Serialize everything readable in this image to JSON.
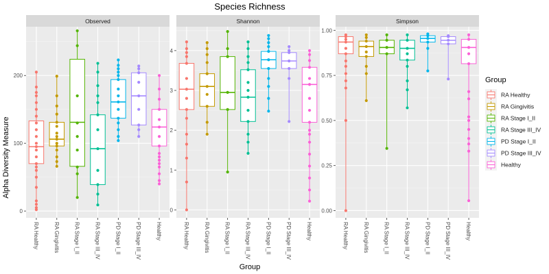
{
  "chart_data": {
    "type": "box",
    "title": "Species Richness",
    "xlabel": "Group",
    "ylabel": "Alpha Diversity Measure",
    "legend": {
      "title": "Group",
      "position": "right"
    },
    "groups": [
      {
        "name": "RA Healthy",
        "color": "#F8766D"
      },
      {
        "name": "RA Gingivitis",
        "color": "#C49A00"
      },
      {
        "name": "RA Stage I_II",
        "color": "#53B400"
      },
      {
        "name": "RA Stage III_IV",
        "color": "#00C094"
      },
      {
        "name": "PD Stage I_II",
        "color": "#00B6EB"
      },
      {
        "name": "PD Stage III_IV",
        "color": "#A58AFF"
      },
      {
        "name": "Healthy",
        "color": "#FB61D7"
      }
    ],
    "panels": [
      {
        "name": "Observed",
        "ylim": [
          -10,
          272
        ],
        "yticks": [
          0,
          100,
          200
        ],
        "boxes": [
          {
            "q1": 70,
            "median": 95,
            "q3": 133,
            "lo": 2,
            "hi": 205,
            "points": [
              2,
              5,
              10,
              15,
              35,
              50,
              60,
              65,
              70,
              80,
              90,
              95,
              100,
              110,
              120,
              130,
              140,
              150,
              160,
              170,
              175,
              183,
              205
            ]
          },
          {
            "q1": 96,
            "median": 106,
            "q3": 131,
            "lo": 66,
            "hi": 199,
            "points": [
              66,
              73,
              80,
              90,
              96,
              100,
              106,
              110,
              115,
              125,
              131,
              143,
              155,
              170,
              199
            ]
          },
          {
            "q1": 66,
            "median": 131,
            "q3": 224,
            "lo": 20,
            "hi": 266,
            "points": [
              20,
              55,
              65,
              90,
              110,
              130,
              170,
              244,
              266
            ]
          },
          {
            "q1": 39,
            "median": 92,
            "q3": 142,
            "lo": 9,
            "hi": 218,
            "points": [
              9,
              25,
              39,
              60,
              92,
              120,
              142,
              160,
              170,
              185,
              205,
              218
            ]
          },
          {
            "q1": 137,
            "median": 161,
            "q3": 194,
            "lo": 104,
            "hi": 223,
            "points": [
              104,
              110,
              120,
              130,
              137,
              150,
              161,
              170,
              180,
              194,
              200,
              205,
              210,
              215,
              223
            ]
          },
          {
            "q1": 127,
            "median": 170,
            "q3": 204,
            "lo": 110,
            "hi": 214,
            "points": [
              110,
              120,
              127,
              150,
              170,
              190,
              204,
              210,
              214
            ]
          },
          {
            "q1": 96,
            "median": 124,
            "q3": 150,
            "lo": 40,
            "hi": 200,
            "points": [
              40,
              45,
              55,
              65,
              70,
              75,
              80,
              85,
              96,
              110,
              124,
              135,
              150,
              165,
              180,
              200
            ]
          }
        ]
      },
      {
        "name": "Shannon",
        "ylim": [
          -0.2,
          4.6
        ],
        "yticks": [
          0,
          1,
          2,
          3,
          4
        ],
        "boxes": [
          {
            "q1": 2.52,
            "median": 3.03,
            "q3": 3.68,
            "lo": 0.0,
            "hi": 4.22,
            "points": [
              0.0,
              0.7,
              1.3,
              1.65,
              1.9,
              2.3,
              2.52,
              2.8,
              3.03,
              3.3,
              3.68,
              3.85,
              3.95,
              4.05,
              4.22
            ]
          },
          {
            "q1": 2.6,
            "median": 3.1,
            "q3": 3.42,
            "lo": 1.9,
            "hi": 4.2,
            "points": [
              1.9,
              2.2,
              2.6,
              2.9,
              3.1,
              3.42,
              3.7,
              3.9,
              4.05,
              4.2
            ]
          },
          {
            "q1": 2.52,
            "median": 2.95,
            "q3": 3.85,
            "lo": 0.95,
            "hi": 4.48,
            "points": [
              0.95,
              2.52,
              2.95,
              3.85,
              4.05,
              4.48
            ]
          },
          {
            "q1": 2.22,
            "median": 2.83,
            "q3": 3.52,
            "lo": 1.42,
            "hi": 4.22,
            "points": [
              1.42,
              1.7,
              1.9,
              2.22,
              2.5,
              2.83,
              3.0,
              3.2,
              3.52,
              3.7,
              3.85,
              4.05,
              4.22
            ]
          },
          {
            "q1": 3.55,
            "median": 3.77,
            "q3": 3.98,
            "lo": 2.48,
            "hi": 4.38,
            "points": [
              2.48,
              2.8,
              3.1,
              3.3,
              3.55,
              3.77,
              3.98,
              4.1,
              4.2,
              4.3,
              4.38
            ]
          },
          {
            "q1": 3.55,
            "median": 3.74,
            "q3": 3.95,
            "lo": 2.22,
            "hi": 4.1,
            "points": [
              2.22,
              3.3,
              3.55,
              3.74,
              3.95,
              4.0,
              4.1
            ]
          },
          {
            "q1": 2.2,
            "median": 3.15,
            "q3": 3.58,
            "lo": 0.22,
            "hi": 4.0,
            "points": [
              0.22,
              0.5,
              0.8,
              1.1,
              1.4,
              1.7,
              1.9,
              2.0,
              2.2,
              2.5,
              2.8,
              3.15,
              3.3,
              3.58,
              3.75,
              3.9,
              4.0
            ]
          }
        ]
      },
      {
        "name": "Simpson",
        "ylim": [
          -0.04,
          1.02
        ],
        "yticks": [
          0.0,
          0.25,
          0.5,
          0.75,
          1.0
        ],
        "ytick_labels": [
          "0.00",
          "0.25",
          "0.50",
          "0.75",
          "1.00"
        ],
        "boxes": [
          {
            "q1": 0.87,
            "median": 0.935,
            "q3": 0.965,
            "lo": 0.0,
            "hi": 0.975,
            "points": [
              0.0,
              0.5,
              0.68,
              0.72,
              0.76,
              0.8,
              0.83,
              0.87,
              0.9,
              0.935,
              0.95,
              0.965,
              0.975
            ]
          },
          {
            "q1": 0.855,
            "median": 0.91,
            "q3": 0.94,
            "lo": 0.61,
            "hi": 0.975,
            "points": [
              0.61,
              0.76,
              0.8,
              0.855,
              0.88,
              0.91,
              0.94,
              0.96,
              0.975
            ]
          },
          {
            "q1": 0.87,
            "median": 0.905,
            "q3": 0.945,
            "lo": 0.345,
            "hi": 0.975,
            "points": [
              0.345,
              0.87,
              0.905,
              0.945,
              0.975
            ]
          },
          {
            "q1": 0.835,
            "median": 0.9,
            "q3": 0.945,
            "lo": 0.57,
            "hi": 0.975,
            "points": [
              0.57,
              0.67,
              0.72,
              0.8,
              0.835,
              0.87,
              0.9,
              0.945,
              0.975
            ]
          },
          {
            "q1": 0.935,
            "median": 0.955,
            "q3": 0.97,
            "lo": 0.775,
            "hi": 0.98,
            "points": [
              0.775,
              0.9,
              0.935,
              0.955,
              0.97,
              0.98
            ]
          },
          {
            "q1": 0.925,
            "median": 0.945,
            "q3": 0.965,
            "lo": 0.73,
            "hi": 0.97,
            "points": [
              0.73,
              0.925,
              0.945,
              0.965,
              0.97
            ]
          },
          {
            "q1": 0.815,
            "median": 0.905,
            "q3": 0.95,
            "lo": 0.055,
            "hi": 0.975,
            "points": [
              0.055,
              0.33,
              0.37,
              0.4,
              0.45,
              0.5,
              0.52,
              0.62,
              0.66,
              0.815,
              0.87,
              0.905,
              0.95,
              0.975
            ]
          }
        ]
      }
    ]
  }
}
